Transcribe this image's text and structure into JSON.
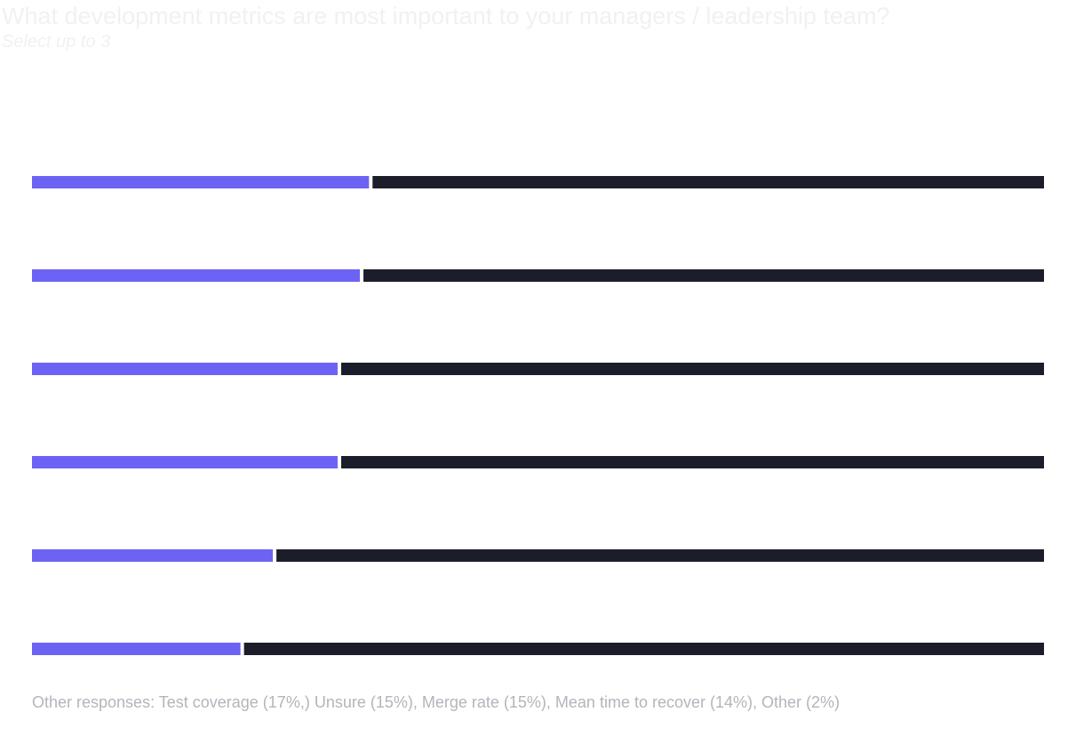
{
  "header": {
    "title": "What development metrics are most important to your managers / leadership team?",
    "subtitle": "Select up to 3"
  },
  "chart_data": {
    "type": "bar",
    "orientation": "horizontal",
    "stacked": true,
    "max": 100,
    "series": [
      {
        "values": [
          33.3,
          32.4,
          30.2,
          30.2,
          23.8,
          20.6
        ]
      },
      {
        "values": [
          66.7,
          67.6,
          69.8,
          69.8,
          76.2,
          79.4
        ]
      }
    ],
    "colors": {
      "share": "#6c63f5",
      "remainder": "#1b1e2a"
    },
    "grid": false,
    "legend": "none"
  },
  "footnote": "Other responses:  Test coverage (17%,) Unsure (15%), Merge rate (15%), Mean time to recover (14%), Other (2%)"
}
